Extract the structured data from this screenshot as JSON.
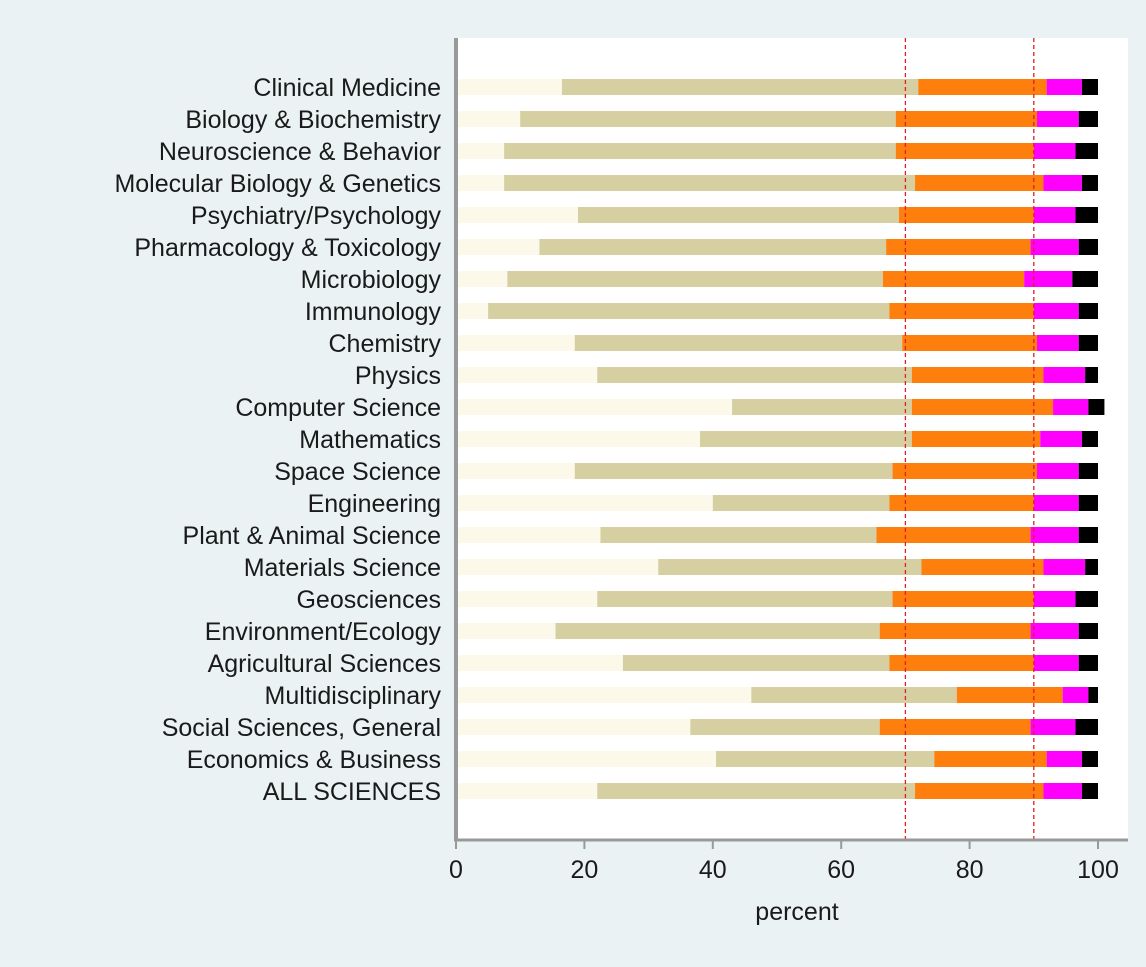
{
  "chart_data": {
    "type": "bar",
    "orientation": "horizontal",
    "stacked": true,
    "categories": [
      "Clinical Medicine",
      "Biology & Biochemistry",
      "Neuroscience & Behavior",
      "Molecular Biology & Genetics",
      "Psychiatry/Psychology",
      "Pharmacology & Toxicology",
      "Microbiology",
      "Immunology",
      "Chemistry",
      "Physics",
      "Computer Science",
      "Mathematics",
      "Space Science",
      "Engineering",
      "Plant & Animal Science",
      "Materials Science",
      "Geosciences",
      "Environment/Ecology",
      "Agricultural Sciences",
      "Multidisciplinary",
      "Social Sciences, General",
      "Economics & Business",
      "ALL SCIENCES"
    ],
    "series": [
      {
        "color": "#fdf9ea",
        "values": [
          16.5,
          10,
          7.5,
          7.5,
          19,
          13,
          8,
          5,
          18.5,
          22,
          43,
          38,
          18.5,
          40,
          22.5,
          31.5,
          22,
          15.5,
          26,
          46,
          36.5,
          40.5,
          22
        ]
      },
      {
        "color": "#d6cfa2",
        "values": [
          55.5,
          58.5,
          61,
          64,
          50,
          54,
          58.5,
          62.5,
          51,
          49,
          28,
          33,
          49.5,
          27.5,
          43,
          41,
          46,
          50.5,
          41.5,
          32,
          29.5,
          34,
          49.5
        ]
      },
      {
        "color": "#ff7f0e",
        "values": [
          20,
          22,
          21.5,
          20,
          21,
          22.5,
          22,
          22.5,
          21,
          20.5,
          22,
          20,
          22.5,
          22.5,
          24,
          19,
          22,
          23.5,
          22.5,
          16.5,
          23.5,
          17.5,
          20
        ]
      },
      {
        "color": "#ff00ff",
        "values": [
          5.5,
          6.5,
          6.5,
          6,
          6.5,
          7.5,
          7.5,
          7,
          6.5,
          6.5,
          5.5,
          6.5,
          6.5,
          7,
          7.5,
          6.5,
          6.5,
          7.5,
          7,
          4,
          7,
          5.5,
          6
        ]
      },
      {
        "color": "#000000",
        "values": [
          2.5,
          3,
          3.5,
          2.5,
          3.5,
          3,
          4,
          3,
          3,
          2,
          2.5,
          2.5,
          3,
          3,
          3,
          2,
          3.5,
          3,
          3,
          1.5,
          3.5,
          2.5,
          2.5
        ]
      }
    ],
    "xlabel": "percent",
    "ylabel": "",
    "xlim": [
      0,
      104
    ],
    "xticks": [
      0,
      20,
      40,
      60,
      80,
      100
    ],
    "reference_lines": [
      70,
      90
    ],
    "reference_line_color": "#e02020",
    "axis_color": "#999999",
    "plot_background": "#ffffff",
    "page_background": "#eaf2f3",
    "grid": false,
    "legend": "none"
  }
}
